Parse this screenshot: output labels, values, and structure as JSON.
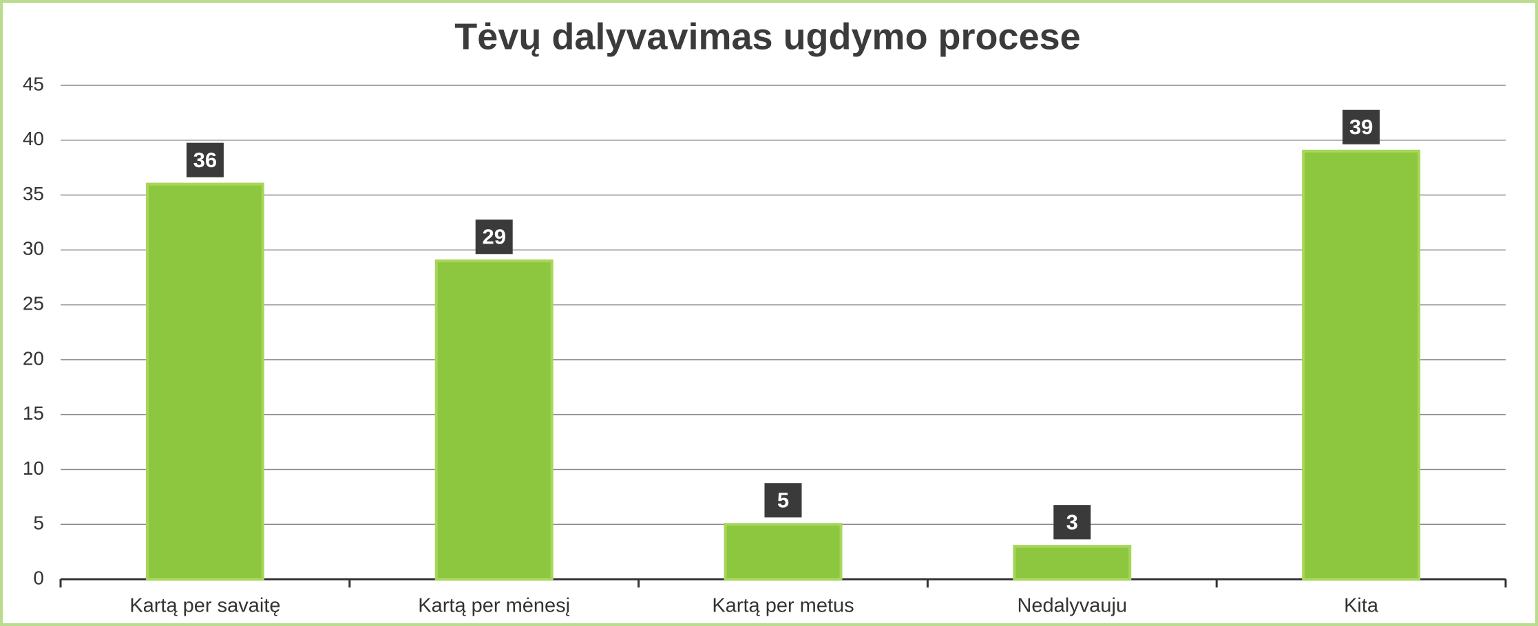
{
  "chart_data": {
    "type": "bar",
    "title": "Tėvų dalyvavimas ugdymo procese",
    "categories": [
      "Kartą per savaitę",
      "Kartą per mėnesį",
      "Kartą per metus",
      "Nedalyvauju",
      "Kita"
    ],
    "values": [
      36,
      29,
      5,
      3,
      39
    ],
    "color": "#8dc63f",
    "ylim": [
      0,
      45
    ],
    "yticks": [
      0,
      5,
      10,
      15,
      20,
      25,
      30,
      35,
      40,
      45
    ],
    "grid": true
  }
}
